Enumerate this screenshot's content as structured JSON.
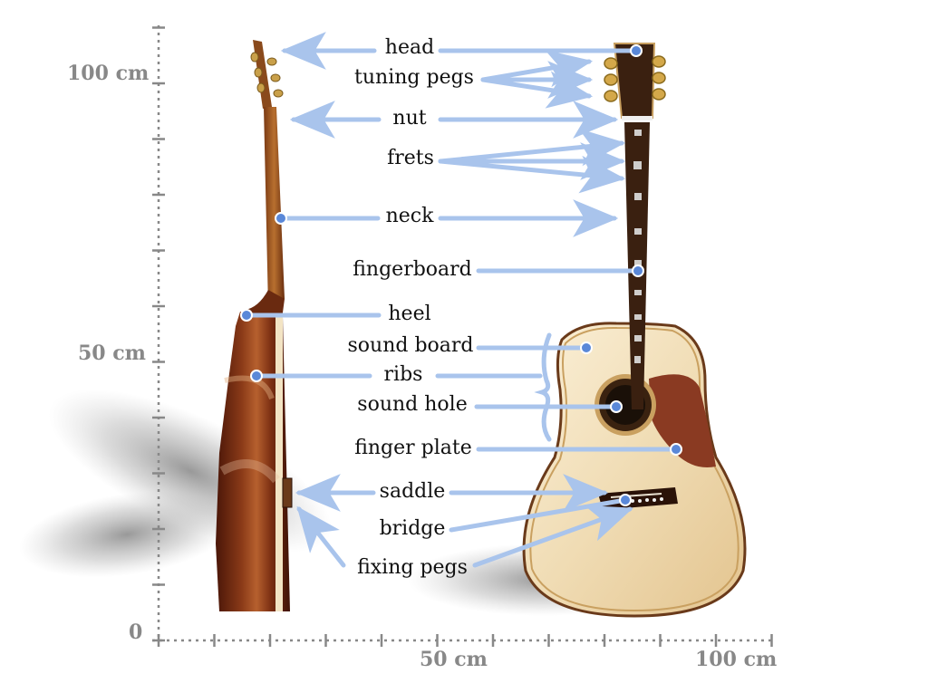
{
  "scale": {
    "y_labels": [
      "100 cm",
      "50 cm",
      "0"
    ],
    "x_labels": [
      "50 cm",
      "100 cm"
    ]
  },
  "parts": [
    "head",
    "tuning pegs",
    "nut",
    "frets",
    "neck",
    "fingerboard",
    "heel",
    "sound board",
    "ribs",
    "sound hole",
    "finger plate",
    "saddle",
    "bridge",
    "fixing pegs"
  ],
  "colors": {
    "arrow": "#a9c4ec",
    "arrow_dot": "#5a88d8",
    "scale": "#888888",
    "soundboard": "#f1dfbd",
    "side_wood": "#6e2a14",
    "pickguard": "#8a3a22"
  }
}
